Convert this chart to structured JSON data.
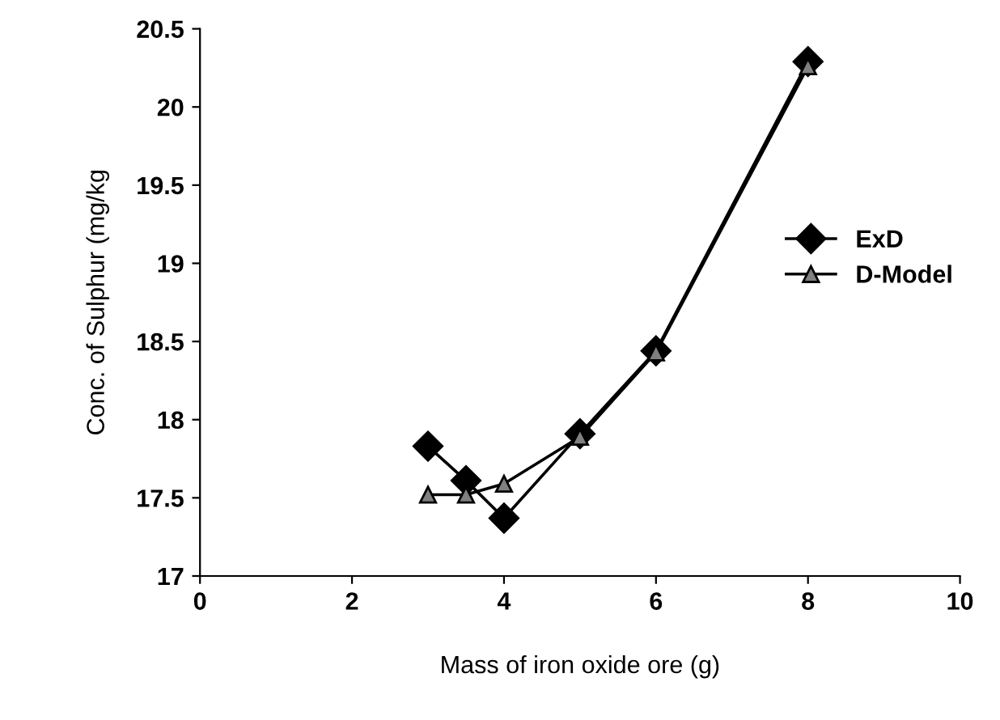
{
  "chart_data": {
    "type": "line",
    "xlabel": "Mass of iron oxide ore (g)",
    "ylabel": "Conc. of Sulphur (mg/kg",
    "xlim": [
      0,
      10
    ],
    "xticks": [
      0,
      2,
      4,
      6,
      8,
      10
    ],
    "ylim": [
      17,
      20.5
    ],
    "yticks": [
      17,
      17.5,
      18,
      18.5,
      19,
      19.5,
      20,
      20.5
    ],
    "grid": false,
    "legend": "right",
    "series": [
      {
        "name": "ExD",
        "color": "#000000",
        "marker": "diamond",
        "x": [
          3,
          3.5,
          4,
          5,
          6,
          8
        ],
        "values": [
          17.83,
          17.61,
          17.37,
          17.91,
          18.44,
          20.29
        ]
      },
      {
        "name": "D-Model",
        "color": "#808080",
        "marker": "triangle",
        "x": [
          3,
          3.5,
          4,
          5,
          6,
          8
        ],
        "values": [
          17.52,
          17.52,
          17.59,
          17.89,
          18.43,
          20.26
        ]
      }
    ]
  }
}
